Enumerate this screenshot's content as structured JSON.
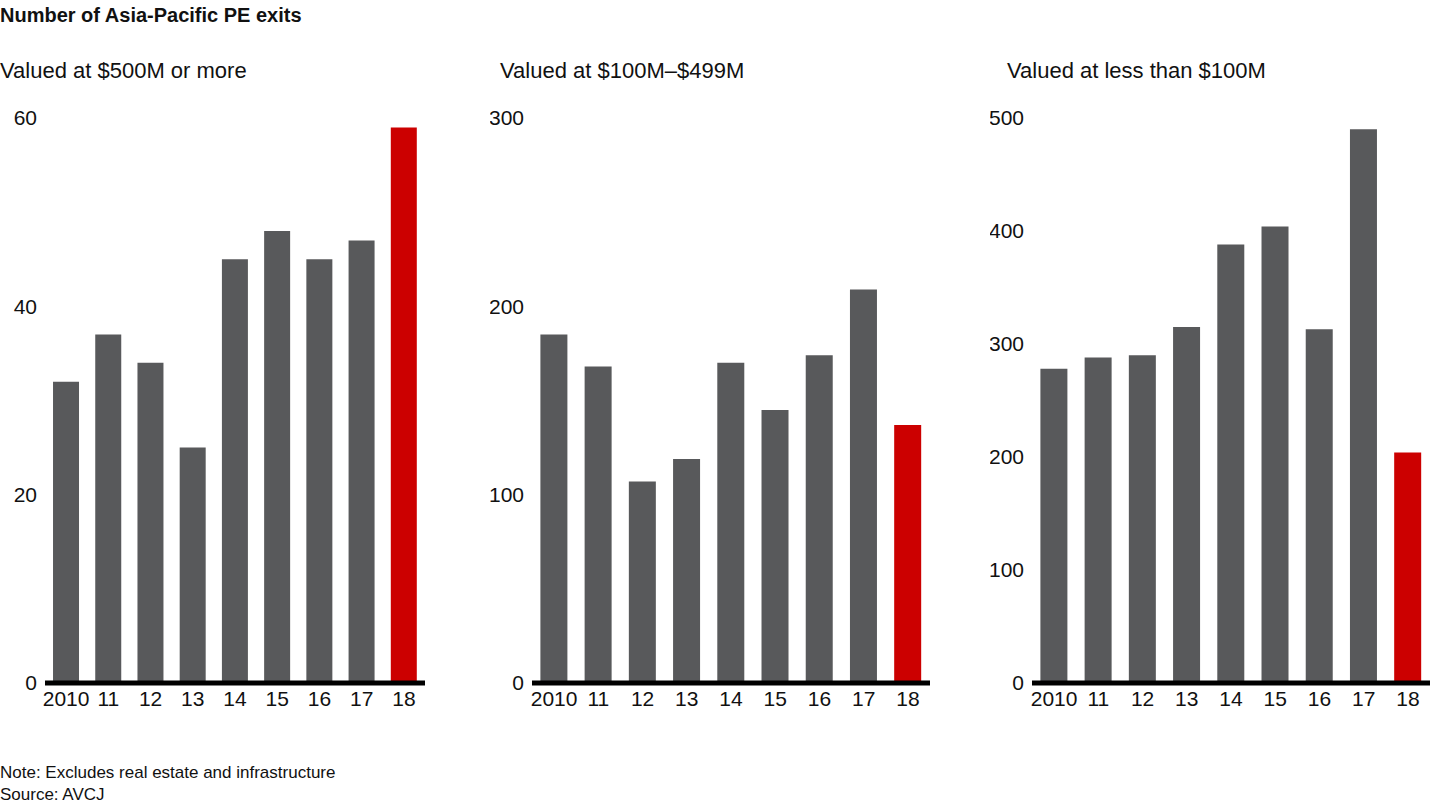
{
  "title": "Number of Asia-Pacific PE exits",
  "note": "Note: Excludes real estate and infrastructure",
  "source": "Source: AVCJ",
  "chart_data": [
    {
      "type": "bar",
      "subtitle": "Valued at $500M or more",
      "categories": [
        "2010",
        "11",
        "12",
        "13",
        "14",
        "15",
        "16",
        "17",
        "18"
      ],
      "values": [
        32,
        37,
        34,
        25,
        45,
        48,
        45,
        47,
        59
      ],
      "colors": [
        "#58595b",
        "#58595b",
        "#58595b",
        "#58595b",
        "#58595b",
        "#58595b",
        "#58595b",
        "#58595b",
        "#cc0000"
      ],
      "ylim": [
        0,
        60
      ],
      "yticks": [
        0,
        20,
        40,
        60
      ]
    },
    {
      "type": "bar",
      "subtitle": "Valued at $100M–$499M",
      "categories": [
        "2010",
        "11",
        "12",
        "13",
        "14",
        "15",
        "16",
        "17",
        "18"
      ],
      "values": [
        185,
        168,
        107,
        119,
        170,
        145,
        174,
        209,
        137
      ],
      "colors": [
        "#58595b",
        "#58595b",
        "#58595b",
        "#58595b",
        "#58595b",
        "#58595b",
        "#58595b",
        "#58595b",
        "#cc0000"
      ],
      "ylim": [
        0,
        300
      ],
      "yticks": [
        0,
        100,
        200,
        300
      ]
    },
    {
      "type": "bar",
      "subtitle": "Valued at less than $100M",
      "categories": [
        "2010",
        "11",
        "12",
        "13",
        "14",
        "15",
        "16",
        "17",
        "18"
      ],
      "values": [
        278,
        288,
        290,
        315,
        388,
        404,
        313,
        490,
        204
      ],
      "colors": [
        "#58595b",
        "#58595b",
        "#58595b",
        "#58595b",
        "#58595b",
        "#58595b",
        "#58595b",
        "#58595b",
        "#cc0000"
      ],
      "ylim": [
        0,
        500
      ],
      "yticks": [
        0,
        100,
        200,
        300,
        400,
        500
      ]
    }
  ]
}
